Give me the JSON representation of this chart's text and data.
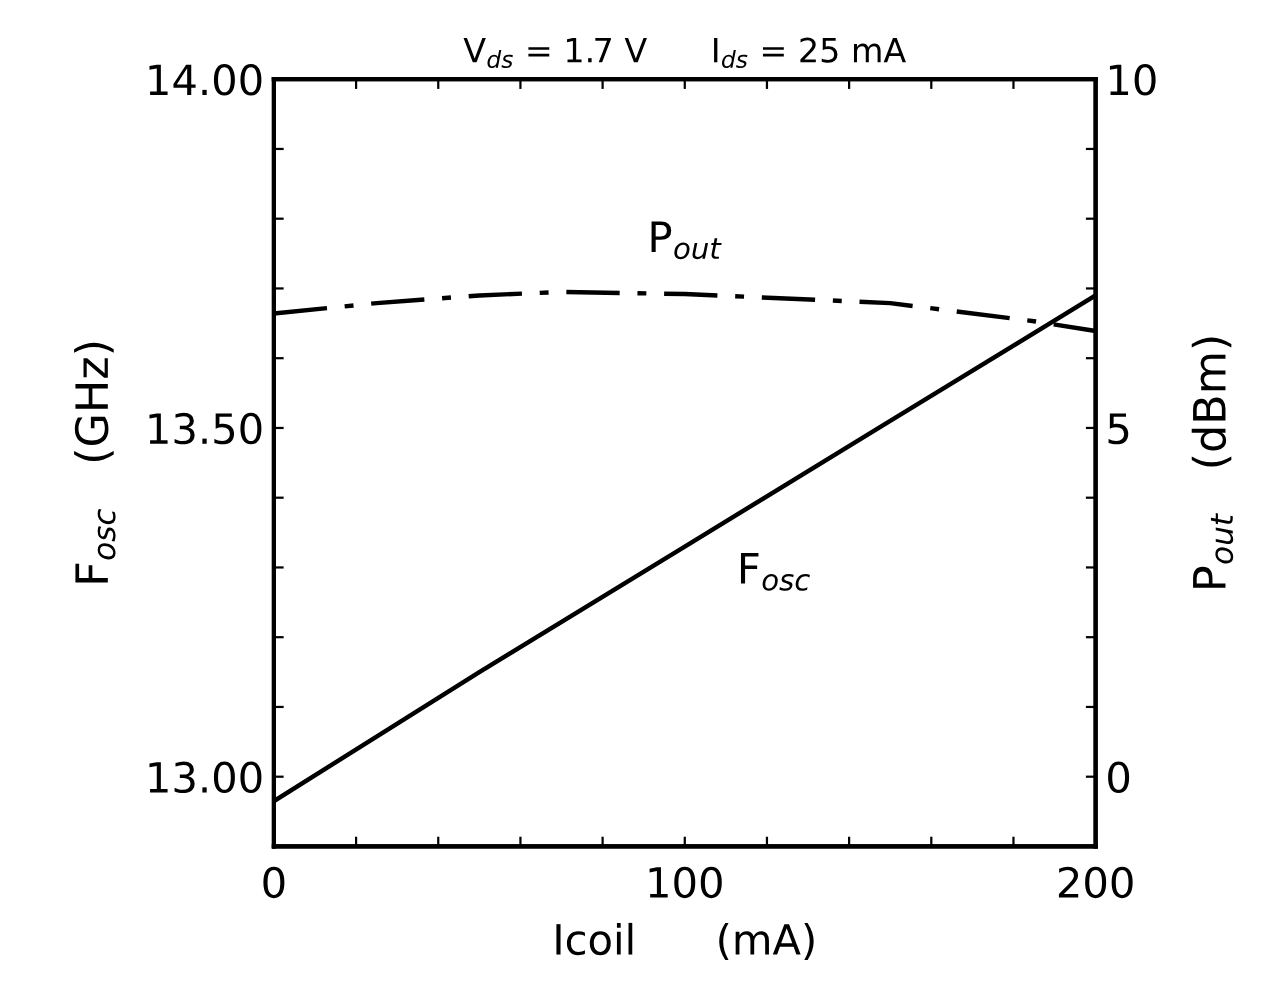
{
  "chart_data": {
    "type": "line",
    "title": "V$_{ds}$ = 1.7 V      I$_{ds}$ = 25 mA",
    "xlabel": "Icoil      (mA)",
    "ylabel": "F$_{osc}$   (GHz)",
    "y2label": "P$_{out}$   (dBm)",
    "series": [
      {
        "name": "F$_{osc}$",
        "color": "#000000",
        "line_style": "solid",
        "x": [
          0,
          50,
          100,
          150,
          200
        ],
        "values": [
          12.965,
          13.15,
          13.33,
          13.51,
          13.69
        ]
      },
      {
        "name": "P$_{out}$",
        "color": "#000000",
        "line_style": "dashdot",
        "axis": "y2",
        "x": [
          0,
          25,
          50,
          70,
          100,
          150,
          185,
          200
        ],
        "values": [
          6.64,
          6.79,
          6.9,
          6.95,
          6.92,
          6.79,
          6.53,
          6.39
        ]
      }
    ],
    "xlim": [
      0,
      200
    ],
    "xticks": [
      0,
      {
        "value": 20,
        "label": null
      },
      {
        "value": 40,
        "label": null
      },
      {
        "value": 60,
        "label": null
      },
      {
        "value": 80,
        "label": null
      },
      100,
      {
        "value": 120,
        "label": null
      },
      {
        "value": 140,
        "label": null
      },
      {
        "value": 160,
        "label": null
      },
      {
        "value": 180,
        "label": null
      },
      200
    ],
    "ylim": [
      12.9,
      14.0
    ],
    "yticks": [
      {
        "value": 13.0,
        "label": "13.00"
      },
      {
        "value": 13.1,
        "label": null
      },
      {
        "value": 13.2,
        "label": null
      },
      {
        "value": 13.3,
        "label": null
      },
      {
        "value": 13.4,
        "label": null
      },
      {
        "value": 13.5,
        "label": "13.50"
      },
      {
        "value": 13.6,
        "label": null
      },
      {
        "value": 13.7,
        "label": null
      },
      {
        "value": 13.8,
        "label": null
      },
      {
        "value": 13.9,
        "label": null
      },
      {
        "value": 14.0,
        "label": "14.00"
      }
    ],
    "y2lim": [
      -1,
      10
    ],
    "y2ticks": [
      0,
      {
        "value": 1,
        "label": null
      },
      {
        "value": 2,
        "label": null
      },
      {
        "value": 3,
        "label": null
      },
      {
        "value": 4,
        "label": null
      },
      5,
      {
        "value": 6,
        "label": null
      },
      {
        "value": 7,
        "label": null
      },
      {
        "value": 8,
        "label": null
      },
      {
        "value": 9,
        "label": null
      },
      10
    ],
    "grid": false,
    "legend": false,
    "marker": "none"
  }
}
